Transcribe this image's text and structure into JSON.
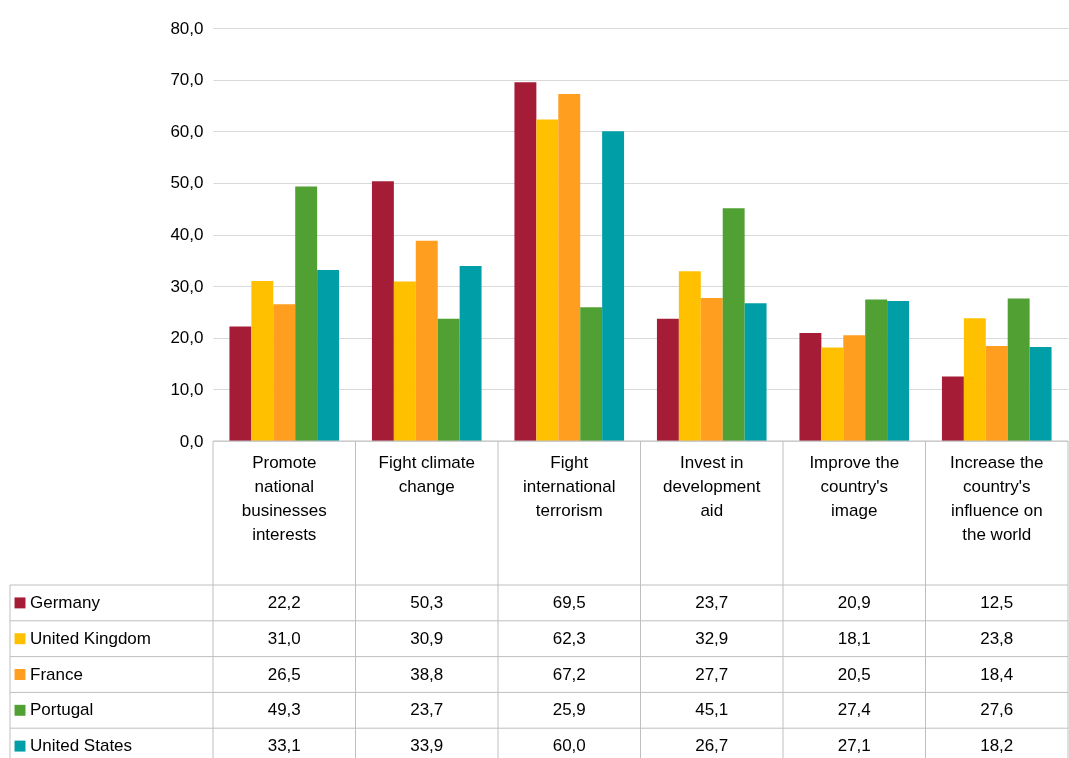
{
  "chart_data": {
    "type": "bar",
    "categories": [
      "Promote national businesses interests",
      "Fight climate change",
      "Fight international terrorism",
      "Invest in development aid",
      "Improve the country's image",
      "Increase the country's influence on the world"
    ],
    "series": [
      {
        "name": "Germany",
        "color": "#a51c36",
        "values": [
          22.2,
          50.3,
          69.5,
          23.7,
          20.9,
          12.5
        ],
        "value_labels": [
          "22,2",
          "50,3",
          "69,5",
          "23,7",
          "20,9",
          "12,5"
        ]
      },
      {
        "name": "United Kingdom",
        "color": "#ffc000",
        "values": [
          31.0,
          30.9,
          62.3,
          32.9,
          18.1,
          23.8
        ],
        "value_labels": [
          "31,0",
          "30,9",
          "62,3",
          "32,9",
          "18,1",
          "23,8"
        ]
      },
      {
        "name": "France",
        "color": "#ff9e1f",
        "values": [
          26.5,
          38.8,
          67.2,
          27.7,
          20.5,
          18.4
        ],
        "value_labels": [
          "26,5",
          "38,8",
          "67,2",
          "27,7",
          "20,5",
          "18,4"
        ]
      },
      {
        "name": "Portugal",
        "color": "#51a033",
        "values": [
          49.3,
          23.7,
          25.9,
          45.1,
          27.4,
          27.6
        ],
        "value_labels": [
          "49,3",
          "23,7",
          "25,9",
          "45,1",
          "27,4",
          "27,6"
        ]
      },
      {
        "name": "United States",
        "color": "#009fa8",
        "values": [
          33.1,
          33.9,
          60.0,
          26.7,
          27.1,
          18.2
        ],
        "value_labels": [
          "33,1",
          "33,9",
          "60,0",
          "26,7",
          "27,1",
          "18,2"
        ]
      }
    ],
    "ylim": [
      0,
      80
    ],
    "yticks": [
      {
        "value": 0,
        "label": "0,0"
      },
      {
        "value": 10,
        "label": "10,0"
      },
      {
        "value": 20,
        "label": "20,0"
      },
      {
        "value": 30,
        "label": "30,0"
      },
      {
        "value": 40,
        "label": "40,0"
      },
      {
        "value": 50,
        "label": "50,0"
      },
      {
        "value": 60,
        "label": "60,0"
      },
      {
        "value": 70,
        "label": "70,0"
      },
      {
        "value": 80,
        "label": "80,0"
      }
    ],
    "grid": "y",
    "legend": "bottom"
  }
}
